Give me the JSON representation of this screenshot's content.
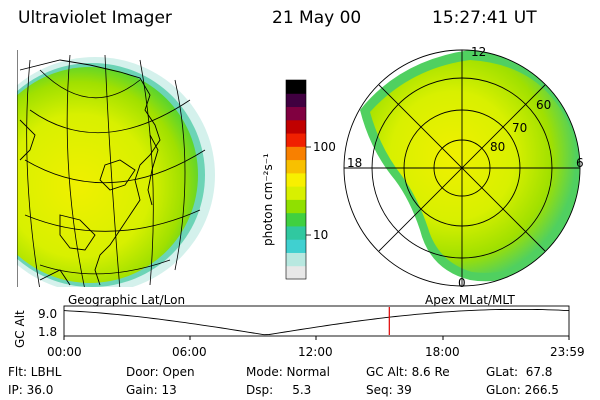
{
  "header": {
    "title": "Ultraviolet Imager",
    "date": "21 May 00",
    "time": "15:27:41 UT"
  },
  "colorbar": {
    "unit_label": "photon cm⁻²s⁻¹",
    "ticks": [
      "100",
      "10"
    ],
    "colors": [
      "#e8e8e8",
      "#b8e8e0",
      "#40d0d0",
      "#30c8a0",
      "#40d040",
      "#90e000",
      "#d8f000",
      "#f8f000",
      "#f8c000",
      "#f88000",
      "#f02000",
      "#c00000",
      "#800040",
      "#400040",
      "#000000"
    ]
  },
  "panels": {
    "left_label": "Geographic Lat/Lon",
    "right_label": "Apex MLat/MLT",
    "polar_ticks": {
      "top": "12",
      "left": "18",
      "right": "6",
      "bottom": "0",
      "lat_60": "60",
      "lat_70": "70",
      "lat_80": "80"
    }
  },
  "altitude_plot": {
    "ylabel": "GC Alt",
    "ytick_top": "9.0",
    "ytick_bottom": "1.8",
    "xticks": [
      "00:00",
      "06:00",
      "12:00",
      "18:00",
      "23:59"
    ],
    "marker_time_hours": 15.46
  },
  "info": {
    "filter": "Flt: LBHL",
    "ip": "IP: 36.0",
    "door": "Door: Open",
    "gain": "Gain: 13",
    "mode": "Mode: Normal",
    "dsp": "Dsp:     5.3",
    "gc_alt": "GC Alt: 8.6 Re",
    "seq": "Seq: 39",
    "glat": "GLat:  67.8",
    "glon": "GLon: 266.5"
  }
}
